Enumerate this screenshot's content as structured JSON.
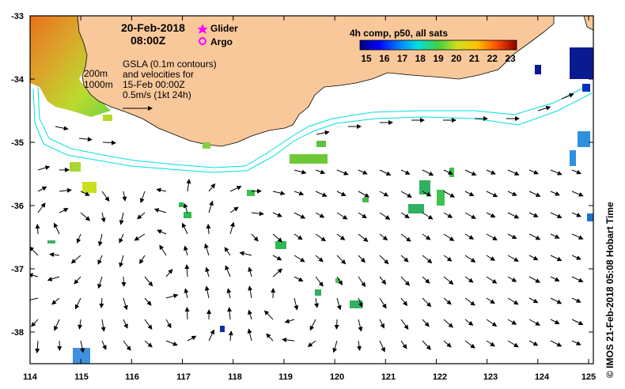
{
  "map": {
    "date": "20-Feb-2018",
    "time": "08:00Z",
    "legend": {
      "glider": "Glider",
      "argo": "Argo"
    },
    "gsla_text": [
      "GSLA (0.1m contours)",
      "and velocities for",
      "15-Feb 00:00Z",
      "0.5m/s (1kt 24h)"
    ],
    "isobaths": [
      "200m",
      "1000m"
    ],
    "colorbar": {
      "title": "4h comp, p50, all sats",
      "min": 15,
      "max": 23,
      "ticks": [
        "15",
        "16",
        "17",
        "18",
        "19",
        "20",
        "21",
        "22",
        "23"
      ]
    },
    "lon_labels": [
      "114",
      "115",
      "116",
      "117",
      "118",
      "119",
      "120",
      "121",
      "122",
      "123",
      "124",
      "125"
    ],
    "lat_labels": [
      "-33",
      "-34",
      "-35",
      "-36",
      "-37",
      "-38"
    ],
    "lon_range": [
      114,
      125
    ],
    "lat_range": [
      -38.5,
      -33
    ],
    "credit": "© IMOS 21-Feb-2018 05:08 Hobart Time",
    "colors": {
      "land": "#f9c89a",
      "isobath": "#00e0e0",
      "frame": "#000000",
      "glider": "#ff00ff",
      "argo": "#ff00ff"
    }
  }
}
